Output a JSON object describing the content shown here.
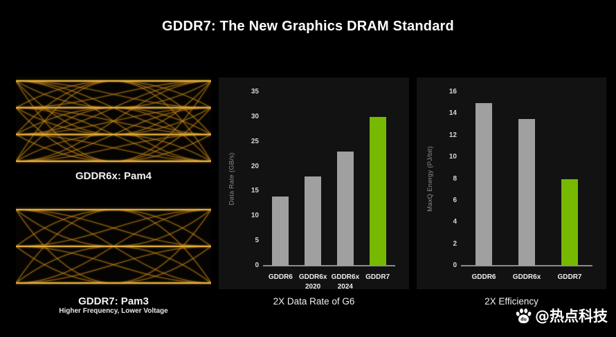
{
  "title": "GDDR7: The New Graphics DRAM Standard",
  "figures": {
    "pam4": {
      "caption": "GDDR6x: Pam4",
      "levels": 4
    },
    "pam3": {
      "caption": "GDDR7: Pam3",
      "subcaption": "Higher Frequency, Lower Voltage",
      "levels": 3
    }
  },
  "colors": {
    "background": "#000000",
    "panel_bg": "#121212",
    "bar_gray": "#a0a0a0",
    "accent_green": "#76b900",
    "trace_gold": "#c9881a",
    "rail_gold": "#eab33c",
    "axis_line": "#8c8c8c"
  },
  "watermark": {
    "icon": "baidu-paw-icon",
    "text": "@热点科技"
  },
  "chart_data": [
    {
      "type": "bar",
      "title": "2X Data Rate of G6",
      "ylabel": "Data Rate (GB/s)",
      "xlabel": "",
      "categories": [
        "GDDR6",
        "GDDR6x\n2020",
        "GDDR6x\n2024",
        "GDDR7"
      ],
      "values": [
        14,
        18,
        23,
        30
      ],
      "bar_colors": [
        "gray",
        "gray",
        "gray",
        "green"
      ],
      "ylim": [
        0,
        35
      ],
      "ytick_step": 5,
      "grid": false,
      "legend": null
    },
    {
      "type": "bar",
      "title": "2X Efficiency",
      "ylabel": "MaxQ Energy (PJ/bit)",
      "xlabel": "",
      "categories": [
        "GDDR6",
        "GDDR6x",
        "GDDR7"
      ],
      "values": [
        15,
        13.5,
        8
      ],
      "bar_colors": [
        "gray",
        "gray",
        "green"
      ],
      "ylim": [
        0,
        16
      ],
      "ytick_step": 2,
      "grid": false,
      "legend": null
    }
  ]
}
